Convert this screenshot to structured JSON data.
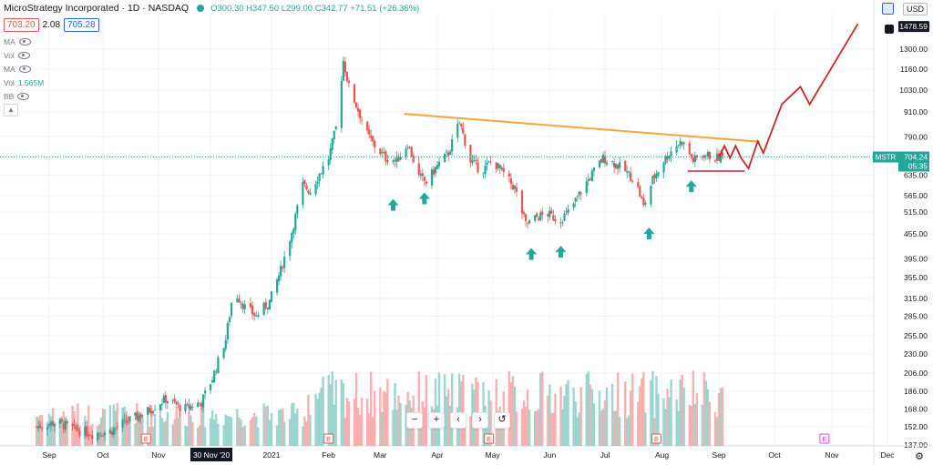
{
  "header": {
    "title": "MicroStrategy Incorporated · 1D · NASDAQ",
    "ohlc": "O300.30 H347.50 L299.00 C342.77 +71.51 (+26.36%)"
  },
  "price_boxes": {
    "bid": "703.20",
    "spread": "2.08",
    "ask": "705.28"
  },
  "indicators": [
    {
      "label": "MA",
      "value": ""
    },
    {
      "label": "Vol",
      "value": ""
    },
    {
      "label": "MA",
      "value": ""
    },
    {
      "label": "Vol",
      "value": "1.565M"
    },
    {
      "label": "BB",
      "value": ""
    }
  ],
  "currency": "USD",
  "zoom_controls": [
    "−",
    "+",
    "‹",
    "›",
    "↺"
  ],
  "chart_data": {
    "type": "candlestick",
    "symbol": "MSTR",
    "last_price": "704.24",
    "countdown": "05:35",
    "top_price": "1478.59",
    "y_axis_scale": "log",
    "y_ticks": [
      "1300.00",
      "1160.00",
      "1030.00",
      "910.00",
      "790.00",
      "635.00",
      "565.00",
      "515.00",
      "455.00",
      "395.00",
      "355.00",
      "315.00",
      "285.00",
      "255.00",
      "230.00",
      "206.00",
      "186.00",
      "168.00",
      "152.00",
      "137.00"
    ],
    "x_ticks": [
      {
        "label": "Sep",
        "date": "2020-09-01"
      },
      {
        "label": "Oct",
        "date": "2020-10-01"
      },
      {
        "label": "Nov",
        "date": "2020-11-01"
      },
      {
        "label": "30 Nov '20",
        "date": "2020-11-30",
        "highlight": true
      },
      {
        "label": "2021",
        "date": "2021-01-01"
      },
      {
        "label": "Feb",
        "date": "2021-02-01"
      },
      {
        "label": "Mar",
        "date": "2021-03-01"
      },
      {
        "label": "Apr",
        "date": "2021-04-01"
      },
      {
        "label": "May",
        "date": "2021-05-01"
      },
      {
        "label": "Jun",
        "date": "2021-06-01"
      },
      {
        "label": "Jul",
        "date": "2021-07-01"
      },
      {
        "label": "Aug",
        "date": "2021-08-01"
      },
      {
        "label": "Sep",
        "date": "2021-09-01"
      },
      {
        "label": "Oct",
        "date": "2021-10-01"
      },
      {
        "label": "Nov",
        "date": "2021-11-01"
      },
      {
        "label": "Dec",
        "date": "2021-12-01"
      }
    ],
    "close_path": [
      [
        "2020-08-25",
        152
      ],
      [
        "2020-09-05",
        156
      ],
      [
        "2020-09-15",
        150
      ],
      [
        "2020-09-25",
        146
      ],
      [
        "2020-10-05",
        148
      ],
      [
        "2020-10-15",
        157
      ],
      [
        "2020-10-25",
        165
      ],
      [
        "2020-11-05",
        178
      ],
      [
        "2020-11-15",
        168
      ],
      [
        "2020-11-25",
        175
      ],
      [
        "2020-12-01",
        200
      ],
      [
        "2020-12-08",
        250
      ],
      [
        "2020-12-12",
        330
      ],
      [
        "2020-12-18",
        300
      ],
      [
        "2020-12-24",
        285
      ],
      [
        "2020-12-31",
        310
      ],
      [
        "2021-01-06",
        370
      ],
      [
        "2021-01-12",
        460
      ],
      [
        "2021-01-18",
        600
      ],
      [
        "2021-01-22",
        580
      ],
      [
        "2021-01-27",
        640
      ],
      [
        "2021-02-01",
        700
      ],
      [
        "2021-02-05",
        830
      ],
      [
        "2021-02-09",
        1220
      ],
      [
        "2021-02-12",
        1050
      ],
      [
        "2021-02-17",
        920
      ],
      [
        "2021-02-22",
        800
      ],
      [
        "2021-02-26",
        750
      ],
      [
        "2021-03-04",
        700
      ],
      [
        "2021-03-10",
        690
      ],
      [
        "2021-03-16",
        760
      ],
      [
        "2021-03-22",
        630
      ],
      [
        "2021-03-26",
        610
      ],
      [
        "2021-04-01",
        670
      ],
      [
        "2021-04-07",
        720
      ],
      [
        "2021-04-13",
        860
      ],
      [
        "2021-04-19",
        690
      ],
      [
        "2021-04-25",
        650
      ],
      [
        "2021-05-01",
        690
      ],
      [
        "2021-05-07",
        640
      ],
      [
        "2021-05-13",
        590
      ],
      [
        "2021-05-19",
        480
      ],
      [
        "2021-05-25",
        500
      ],
      [
        "2021-05-31",
        510
      ],
      [
        "2021-06-06",
        490
      ],
      [
        "2021-06-12",
        520
      ],
      [
        "2021-06-18",
        580
      ],
      [
        "2021-06-24",
        640
      ],
      [
        "2021-06-30",
        700
      ],
      [
        "2021-07-06",
        680
      ],
      [
        "2021-07-12",
        650
      ],
      [
        "2021-07-18",
        610
      ],
      [
        "2021-07-22",
        530
      ],
      [
        "2021-07-27",
        620
      ],
      [
        "2021-08-02",
        690
      ],
      [
        "2021-08-08",
        750
      ],
      [
        "2021-08-12",
        770
      ],
      [
        "2021-08-18",
        690
      ],
      [
        "2021-08-24",
        715
      ],
      [
        "2021-08-30",
        700
      ],
      [
        "2021-09-03",
        704
      ]
    ],
    "resistance_line": {
      "color": "#f7a53a",
      "start": [
        "2021-03-14",
        900
      ],
      "end": [
        "2021-09-23",
        768
      ]
    },
    "support_line": {
      "color": "#c62828",
      "start": [
        "2021-08-15",
        650
      ],
      "end": [
        "2021-09-15",
        650
      ]
    },
    "projection_path": {
      "color": "#c62828",
      "points": [
        [
          "2021-09-01",
          704
        ],
        [
          "2021-09-04",
          750
        ],
        [
          "2021-09-07",
          700
        ],
        [
          "2021-09-10",
          750
        ],
        [
          "2021-09-13",
          700
        ],
        [
          "2021-09-17",
          660
        ],
        [
          "2021-09-22",
          770
        ],
        [
          "2021-09-25",
          720
        ],
        [
          "2021-10-05",
          950
        ],
        [
          "2021-10-15",
          1050
        ],
        [
          "2021-10-20",
          950
        ],
        [
          "2021-11-15",
          1500
        ]
      ]
    },
    "markers": {
      "color": "#26a69a",
      "items": [
        [
          "2021-03-08",
          535
        ],
        [
          "2021-03-25",
          555
        ],
        [
          "2021-05-22",
          405
        ],
        [
          "2021-06-07",
          410
        ],
        [
          "2021-07-25",
          455
        ],
        [
          "2021-08-17",
          595
        ]
      ]
    },
    "earnings_badges": {
      "label": "E",
      "items": [
        "2020-10-25",
        "2021-02-01",
        "2021-04-29",
        "2021-07-29",
        "2021-10-28"
      ]
    }
  }
}
